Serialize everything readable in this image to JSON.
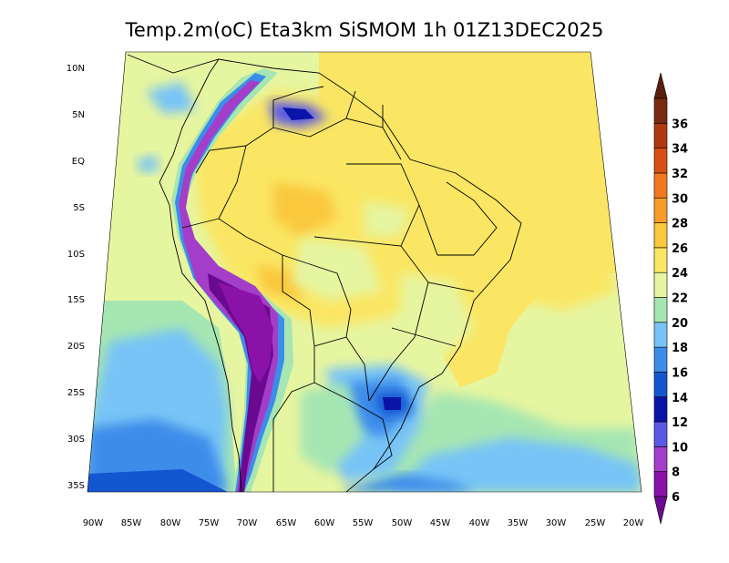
{
  "title": "Temp.2m(oC) Eta3km SiSMOM 1h 01Z13DEC2025",
  "lat_labels": [
    "10N",
    "5N",
    "EQ",
    "5S",
    "10S",
    "15S",
    "20S",
    "25S",
    "30S",
    "35S"
  ],
  "lon_labels": [
    "90W",
    "85W",
    "80W",
    "75W",
    "70W",
    "65W",
    "60W",
    "55W",
    "50W",
    "45W",
    "40W",
    "35W",
    "30W",
    "25W",
    "20W"
  ],
  "colorbar": {
    "labels": [
      "6",
      "8",
      "10",
      "12",
      "14",
      "16",
      "18",
      "20",
      "22",
      "24",
      "26",
      "28",
      "30",
      "32",
      "34",
      "36"
    ],
    "colors": [
      "#8a12a8",
      "#a43ec8",
      "#5a5ae6",
      "#0a14a8",
      "#1456d0",
      "#3c8cea",
      "#78c4f6",
      "#a6e6b2",
      "#e6f5a0",
      "#fae664",
      "#fac83c",
      "#f89c2c",
      "#f07820",
      "#d85018",
      "#b03a10",
      "#7a2a10"
    ],
    "under_color": "#6a0a90",
    "over_color": "#5a1e0c"
  }
}
